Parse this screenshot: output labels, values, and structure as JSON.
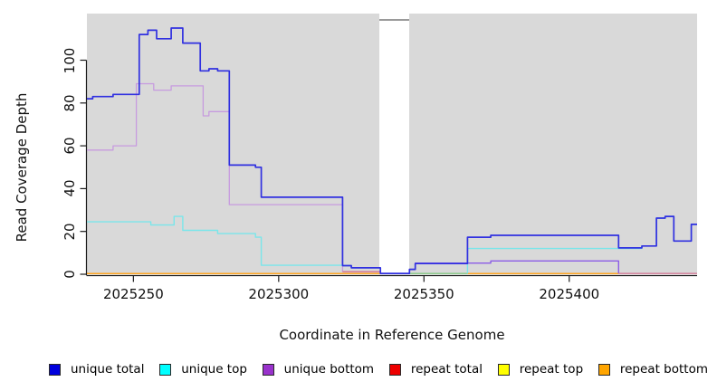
{
  "chart_data": {
    "type": "line",
    "subtype": "step-coverage-plot",
    "title": "",
    "xlabel": "Coordinate in Reference Genome",
    "ylabel": "Read Coverage Depth",
    "x_ticks": [
      2025250,
      2025300,
      2025350,
      2025400
    ],
    "y_ticks": [
      0,
      20,
      40,
      60,
      80,
      100
    ],
    "x_range": [
      2025234,
      2025444
    ],
    "y_range": [
      0,
      122
    ],
    "grid": false,
    "plot_bg_color": "#d9d9d9",
    "gap_region": {
      "x_start": 2025335,
      "x_end": 2025345,
      "color": "#ffffff"
    },
    "legend_position": "bottom",
    "series": [
      {
        "name": "unique total",
        "legend_color": "#0000dd",
        "segments": [
          {
            "color": "#3030e0",
            "width": 1.7,
            "points": [
              [
                2025234,
                82
              ],
              [
                2025236,
                83
              ],
              [
                2025243,
                84
              ],
              [
                2025252,
                112
              ],
              [
                2025255,
                114
              ],
              [
                2025258,
                110
              ],
              [
                2025263,
                115
              ],
              [
                2025267,
                108
              ],
              [
                2025273,
                95
              ],
              [
                2025276,
                96
              ],
              [
                2025279,
                95
              ],
              [
                2025283,
                51
              ],
              [
                2025292,
                50
              ],
              [
                2025294,
                36
              ],
              [
                2025322,
                4
              ],
              [
                2025325,
                3
              ],
              [
                2025335,
                0.4
              ],
              [
                2025345,
                2.3
              ],
              [
                2025347,
                5
              ],
              [
                2025365,
                17.3
              ],
              [
                2025373,
                18.2
              ],
              [
                2025417,
                12.3
              ],
              [
                2025425,
                13.2
              ],
              [
                2025430,
                26.2
              ],
              [
                2025433,
                27
              ],
              [
                2025436,
                15.5
              ],
              [
                2025442,
                23.3
              ],
              [
                2025444,
                23.3
              ]
            ]
          }
        ]
      },
      {
        "name": "unique top",
        "legend_color": "#00ffff",
        "segments": [
          {
            "color": "#7ae6ea",
            "width": 1.4,
            "points": [
              [
                2025234,
                24.5
              ],
              [
                2025256,
                23
              ],
              [
                2025264,
                27
              ],
              [
                2025267,
                20.5
              ],
              [
                2025279,
                19
              ],
              [
                2025292,
                17.3
              ],
              [
                2025294,
                4.2
              ],
              [
                2025322,
                4
              ],
              [
                2025325,
                3
              ],
              [
                2025335,
                0.3
              ]
            ]
          },
          {
            "color": "#7ae6ea",
            "width": 1.4,
            "points": [
              [
                2025365,
                0.3
              ],
              [
                2025365,
                12
              ],
              [
                2025417,
                12
              ],
              [
                2025425,
                13.2
              ],
              [
                2025430,
                26.2
              ],
              [
                2025433,
                27
              ],
              [
                2025436,
                15.5
              ],
              [
                2025442,
                23.3
              ],
              [
                2025444,
                23.3
              ]
            ]
          }
        ]
      },
      {
        "name": "unique bottom",
        "legend_color": "#9932cc",
        "segments": [
          {
            "color": "#c79bdf",
            "width": 1.3,
            "points": [
              [
                2025234,
                58
              ],
              [
                2025243,
                60
              ],
              [
                2025251,
                89
              ],
              [
                2025257,
                86
              ],
              [
                2025263,
                88
              ],
              [
                2025274,
                74
              ],
              [
                2025276,
                76
              ],
              [
                2025283,
                32.5
              ],
              [
                2025322,
                1.2
              ]
            ]
          },
          {
            "color": "#d4708f",
            "width": 1.3,
            "points": [
              [
                2025322,
                1.2
              ],
              [
                2025335,
                1.2
              ]
            ]
          },
          {
            "color": "#8b5ce6",
            "width": 1.4,
            "points": [
              [
                2025345,
                2.3
              ],
              [
                2025347,
                5.2
              ],
              [
                2025373,
                6.2
              ],
              [
                2025417,
                6.2
              ],
              [
                2025417,
                0.4
              ]
            ]
          },
          {
            "color": "#d4708f",
            "width": 1.3,
            "points": [
              [
                2025417,
                0.4
              ],
              [
                2025444,
                0.4
              ]
            ]
          }
        ]
      },
      {
        "name": "repeat total",
        "legend_color": "#ee0000",
        "segments": []
      },
      {
        "name": "repeat top",
        "legend_color": "#ffff00",
        "segments": [
          {
            "color": "#82c882",
            "width": 1.4,
            "points": [
              [
                2025345,
                0.35
              ],
              [
                2025365,
                0.35
              ]
            ]
          }
        ]
      },
      {
        "name": "repeat bottom",
        "legend_color": "#ffa500",
        "segments": [
          {
            "color": "#ffa520",
            "width": 1.5,
            "points": [
              [
                2025234,
                0.35
              ],
              [
                2025335,
                0.35
              ]
            ]
          },
          {
            "color": "#ffa520",
            "width": 1.5,
            "points": [
              [
                2025365,
                0.35
              ],
              [
                2025417,
                0.35
              ]
            ]
          }
        ]
      }
    ]
  }
}
